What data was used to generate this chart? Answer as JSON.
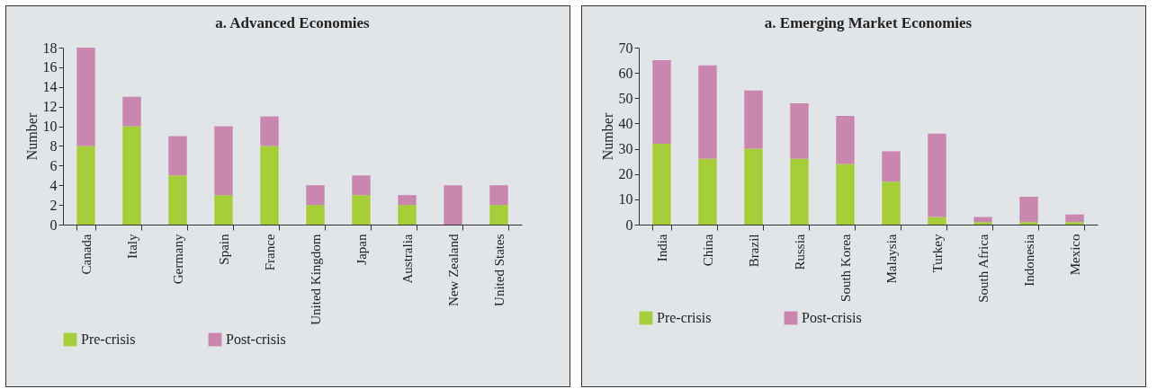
{
  "chart_data": [
    {
      "type": "bar",
      "title": "a. Advanced Economies",
      "ylabel": "Number",
      "stacked": true,
      "legend": "bottom",
      "categories": [
        "Canada",
        "Italy",
        "Germany",
        "Spain",
        "France",
        "United Kingdom",
        "Japan",
        "Australia",
        "New Zealand",
        "United States"
      ],
      "ylim": [
        0,
        18
      ],
      "yticks": [
        0,
        2,
        4,
        6,
        8,
        10,
        12,
        14,
        16,
        18
      ],
      "series": [
        {
          "name": "Pre-crisis",
          "color": "#a6ce39",
          "values": [
            8,
            10,
            5,
            3,
            8,
            2,
            3,
            2,
            0,
            2
          ]
        },
        {
          "name": "Post-crisis",
          "color": "#c987b0",
          "values": [
            10,
            3,
            4,
            7,
            3,
            2,
            2,
            1,
            4,
            2
          ]
        }
      ]
    },
    {
      "type": "bar",
      "title": "a. Emerging Market Economies",
      "ylabel": "Number",
      "stacked": true,
      "legend": "bottom",
      "categories": [
        "India",
        "China",
        "Brazil",
        "Russia",
        "South Korea",
        "Malaysia",
        "Turkey",
        "South Africa",
        "Indonesia",
        "Mexico"
      ],
      "ylim": [
        0,
        70
      ],
      "yticks": [
        0,
        10,
        20,
        30,
        40,
        50,
        60,
        70
      ],
      "series": [
        {
          "name": "Pre-crisis",
          "color": "#a6ce39",
          "values": [
            32,
            26,
            30,
            26,
            24,
            17,
            3,
            1,
            1,
            1
          ]
        },
        {
          "name": "Post-crisis",
          "color": "#c987b0",
          "values": [
            33,
            37,
            23,
            22,
            19,
            12,
            33,
            2,
            10,
            3
          ]
        }
      ]
    }
  ]
}
